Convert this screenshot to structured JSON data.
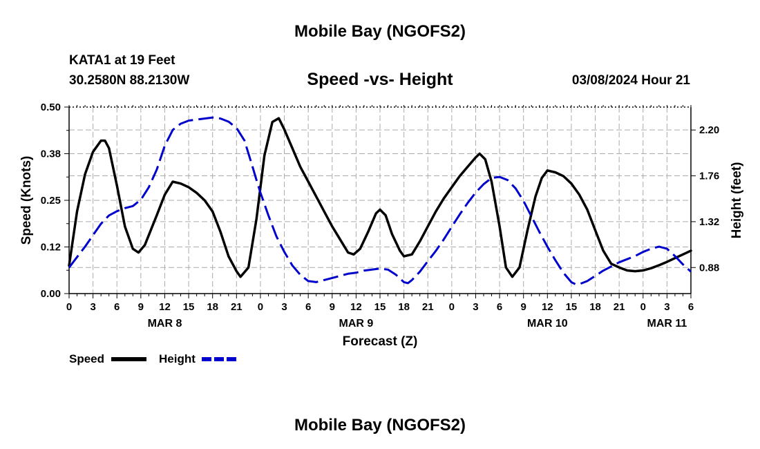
{
  "header": {
    "title_top": "Mobile Bay (NGOFS2)",
    "station": "KATA1 at 19 Feet",
    "coordinates": "30.2580N  88.2130W",
    "subtitle": "Speed -vs- Height",
    "issued": "03/08/2024 Hour 21",
    "title_bottom": "Mobile Bay (NGOFS2)"
  },
  "colors": {
    "speed": "#000000",
    "height": "#0000cc",
    "grid": "#aaaaaa"
  },
  "chart_data": {
    "type": "line",
    "xlabel": "Forecast (Z)",
    "ylabel_left": "Speed (Knots)",
    "ylabel_right": "Height (feet)",
    "x_unit": "hours since MAR 8 00Z",
    "xlim": [
      0,
      78
    ],
    "ylim_left": [
      0,
      0.5
    ],
    "ylim_right": [
      0.63,
      2.42
    ],
    "x_ticks": [
      0,
      3,
      6,
      9,
      12,
      15,
      18,
      21,
      24,
      27,
      30,
      33,
      36,
      39,
      42,
      45,
      48,
      51,
      54,
      57,
      60,
      63,
      66,
      69,
      72,
      75,
      78
    ],
    "x_tick_labels": [
      "0",
      "3",
      "6",
      "9",
      "12",
      "15",
      "18",
      "21",
      "0",
      "3",
      "6",
      "9",
      "12",
      "15",
      "18",
      "21",
      "0",
      "3",
      "6",
      "9",
      "12",
      "15",
      "18",
      "21",
      "0",
      "3",
      "6"
    ],
    "y_ticks_left": [
      0.0,
      0.125,
      0.25,
      0.375,
      0.5
    ],
    "y_tick_labels_left": [
      "0.00",
      "0.12",
      "0.25",
      "0.38",
      "0.50"
    ],
    "y_ticks_right": [
      0.88,
      1.32,
      1.76,
      2.2
    ],
    "y_tick_labels_right": [
      "0.88",
      "1.32",
      "1.76",
      "2.20"
    ],
    "day_labels": [
      {
        "x": 12,
        "label": "MAR 8"
      },
      {
        "x": 36,
        "label": "MAR 9"
      },
      {
        "x": 60,
        "label": "MAR 10"
      },
      {
        "x": 75,
        "label": "MAR 11"
      }
    ],
    "grid": true,
    "legend": {
      "position": "bottom-left",
      "speed_label": "Speed",
      "height_label": "Height"
    },
    "series": [
      {
        "name": "Speed",
        "axis": "left",
        "style": "solid",
        "points": [
          [
            0,
            0.075
          ],
          [
            1,
            0.22
          ],
          [
            2,
            0.32
          ],
          [
            3,
            0.38
          ],
          [
            4,
            0.41
          ],
          [
            4.5,
            0.41
          ],
          [
            5,
            0.39
          ],
          [
            6,
            0.29
          ],
          [
            7,
            0.18
          ],
          [
            8,
            0.12
          ],
          [
            8.7,
            0.11
          ],
          [
            9.5,
            0.13
          ],
          [
            11,
            0.21
          ],
          [
            12,
            0.265
          ],
          [
            13,
            0.3
          ],
          [
            14,
            0.295
          ],
          [
            15,
            0.285
          ],
          [
            16,
            0.27
          ],
          [
            17,
            0.25
          ],
          [
            18,
            0.22
          ],
          [
            19,
            0.165
          ],
          [
            20,
            0.1
          ],
          [
            21,
            0.06
          ],
          [
            21.5,
            0.045
          ],
          [
            22.5,
            0.07
          ],
          [
            23.5,
            0.2
          ],
          [
            24.5,
            0.37
          ],
          [
            25.5,
            0.46
          ],
          [
            26.3,
            0.47
          ],
          [
            27,
            0.44
          ],
          [
            28,
            0.39
          ],
          [
            29,
            0.34
          ],
          [
            30,
            0.3
          ],
          [
            31,
            0.26
          ],
          [
            32,
            0.22
          ],
          [
            33,
            0.18
          ],
          [
            34,
            0.145
          ],
          [
            35,
            0.11
          ],
          [
            35.7,
            0.105
          ],
          [
            36.5,
            0.12
          ],
          [
            37.5,
            0.165
          ],
          [
            38.5,
            0.215
          ],
          [
            39,
            0.225
          ],
          [
            39.7,
            0.21
          ],
          [
            40.5,
            0.16
          ],
          [
            41.5,
            0.115
          ],
          [
            42,
            0.1
          ],
          [
            43,
            0.105
          ],
          [
            44,
            0.14
          ],
          [
            45,
            0.18
          ],
          [
            46,
            0.22
          ],
          [
            47,
            0.255
          ],
          [
            48,
            0.285
          ],
          [
            49,
            0.315
          ],
          [
            50,
            0.34
          ],
          [
            51,
            0.365
          ],
          [
            51.5,
            0.375
          ],
          [
            52.2,
            0.36
          ],
          [
            53,
            0.3
          ],
          [
            54,
            0.18
          ],
          [
            54.8,
            0.07
          ],
          [
            55.6,
            0.045
          ],
          [
            56.5,
            0.07
          ],
          [
            57.5,
            0.17
          ],
          [
            58.5,
            0.26
          ],
          [
            59.3,
            0.31
          ],
          [
            60,
            0.33
          ],
          [
            61,
            0.325
          ],
          [
            62,
            0.315
          ],
          [
            63,
            0.295
          ],
          [
            64,
            0.265
          ],
          [
            65,
            0.225
          ],
          [
            66,
            0.17
          ],
          [
            67,
            0.115
          ],
          [
            68,
            0.08
          ],
          [
            69,
            0.07
          ],
          [
            70,
            0.062
          ],
          [
            71,
            0.06
          ],
          [
            72,
            0.062
          ],
          [
            73,
            0.068
          ],
          [
            74,
            0.076
          ],
          [
            75,
            0.085
          ],
          [
            76,
            0.095
          ],
          [
            77,
            0.105
          ],
          [
            78,
            0.115
          ]
        ]
      },
      {
        "name": "Height",
        "axis": "right",
        "style": "dashed",
        "points": [
          [
            0,
            0.88
          ],
          [
            1,
            0.98
          ],
          [
            2,
            1.08
          ],
          [
            3,
            1.19
          ],
          [
            4,
            1.3
          ],
          [
            5,
            1.38
          ],
          [
            6,
            1.42
          ],
          [
            7,
            1.45
          ],
          [
            8,
            1.47
          ],
          [
            9,
            1.53
          ],
          [
            10,
            1.65
          ],
          [
            11,
            1.82
          ],
          [
            12,
            2.05
          ],
          [
            13,
            2.2
          ],
          [
            14,
            2.26
          ],
          [
            15,
            2.29
          ],
          [
            16,
            2.3
          ],
          [
            17,
            2.31
          ],
          [
            18,
            2.32
          ],
          [
            19,
            2.31
          ],
          [
            20,
            2.28
          ],
          [
            21,
            2.22
          ],
          [
            22,
            2.1
          ],
          [
            23,
            1.85
          ],
          [
            23.5,
            1.72
          ],
          [
            24,
            1.6
          ],
          [
            25,
            1.38
          ],
          [
            26,
            1.18
          ],
          [
            27,
            1.03
          ],
          [
            28,
            0.9
          ],
          [
            29,
            0.81
          ],
          [
            30,
            0.75
          ],
          [
            31,
            0.74
          ],
          [
            32,
            0.76
          ],
          [
            33,
            0.78
          ],
          [
            34,
            0.8
          ],
          [
            35,
            0.82
          ],
          [
            36,
            0.83
          ],
          [
            37,
            0.85
          ],
          [
            38,
            0.86
          ],
          [
            39,
            0.87
          ],
          [
            40,
            0.86
          ],
          [
            41,
            0.81
          ],
          [
            42,
            0.74
          ],
          [
            42.5,
            0.73
          ],
          [
            43,
            0.76
          ],
          [
            44,
            0.84
          ],
          [
            45,
            0.94
          ],
          [
            46,
            1.04
          ],
          [
            47,
            1.15
          ],
          [
            48,
            1.27
          ],
          [
            49,
            1.39
          ],
          [
            50,
            1.5
          ],
          [
            51,
            1.6
          ],
          [
            52,
            1.68
          ],
          [
            53,
            1.74
          ],
          [
            54,
            1.75
          ],
          [
            55,
            1.72
          ],
          [
            56,
            1.64
          ],
          [
            57,
            1.52
          ],
          [
            58,
            1.37
          ],
          [
            59,
            1.22
          ],
          [
            60,
            1.08
          ],
          [
            61,
            0.95
          ],
          [
            62,
            0.83
          ],
          [
            63,
            0.74
          ],
          [
            63.5,
            0.72
          ],
          [
            64,
            0.72
          ],
          [
            65,
            0.75
          ],
          [
            66,
            0.8
          ],
          [
            67,
            0.85
          ],
          [
            68,
            0.89
          ],
          [
            69,
            0.93
          ],
          [
            70,
            0.96
          ],
          [
            71,
            0.99
          ],
          [
            72,
            1.03
          ],
          [
            73,
            1.06
          ],
          [
            74,
            1.08
          ],
          [
            75,
            1.06
          ],
          [
            76,
            0.99
          ],
          [
            77,
            0.91
          ],
          [
            78,
            0.84
          ]
        ]
      }
    ]
  }
}
